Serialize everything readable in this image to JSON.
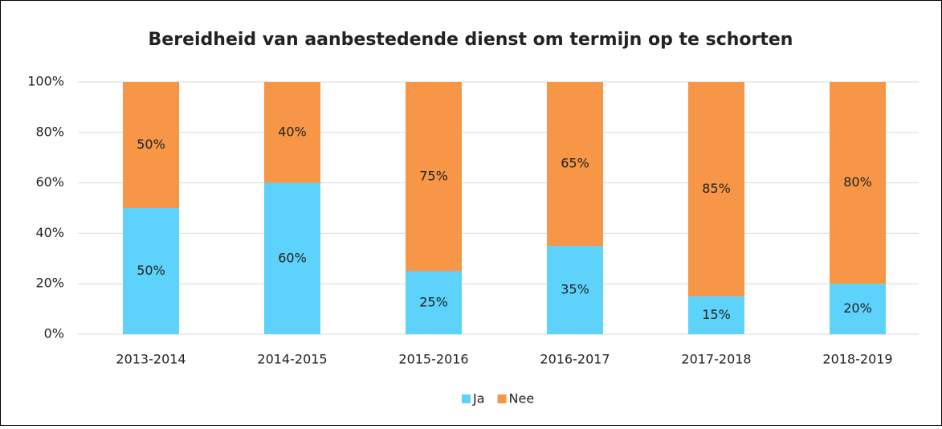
{
  "chart_data": {
    "type": "stacked_bar",
    "title": "Bereidheid van aanbestedende dienst om termijn op te schorten",
    "categories": [
      "2013-2014",
      "2014-2015",
      "2015-2016",
      "2016-2017",
      "2017-2018",
      "2018-2019"
    ],
    "series": [
      {
        "name": "Ja",
        "color": "#5dd3fc",
        "values": [
          50,
          60,
          25,
          35,
          15,
          20
        ],
        "value_labels": [
          "50%",
          "60%",
          "25%",
          "35%",
          "15%",
          "20%"
        ]
      },
      {
        "name": "Nee",
        "color": "#f79646",
        "values": [
          50,
          40,
          75,
          65,
          85,
          80
        ],
        "value_labels": [
          "50%",
          "40%",
          "75%",
          "65%",
          "85%",
          "80%"
        ]
      }
    ],
    "ylim": [
      0,
      100
    ],
    "yticks": [
      {
        "value": 0,
        "label": "0%"
      },
      {
        "value": 20,
        "label": "20%"
      },
      {
        "value": 40,
        "label": "40%"
      },
      {
        "value": 60,
        "label": "60%"
      },
      {
        "value": 80,
        "label": "80%"
      },
      {
        "value": 100,
        "label": "100%"
      }
    ],
    "grid": true,
    "legend": "bottom"
  }
}
